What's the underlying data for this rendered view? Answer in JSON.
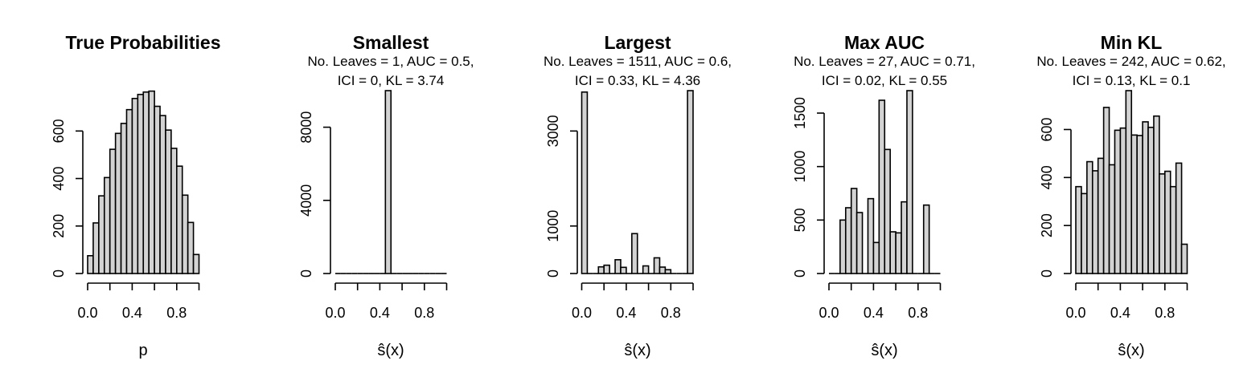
{
  "chart_data": [
    {
      "type": "bar",
      "title": "True Probabilities",
      "subtitle": [],
      "xlabel": "p",
      "xlim": [
        0,
        1
      ],
      "xticks": [
        0.0,
        0.4,
        0.8
      ],
      "xtick_labels": [
        "0.0",
        "0.4",
        "0.8"
      ],
      "ylim": [
        0,
        770
      ],
      "yticks": [
        0,
        200,
        400,
        600
      ],
      "ytick_labels": [
        "0",
        "200",
        "400",
        "600"
      ],
      "bin_width": 0.05,
      "bin_starts": [
        0.0,
        0.05,
        0.1,
        0.15,
        0.2,
        0.25,
        0.3,
        0.35,
        0.4,
        0.45,
        0.5,
        0.55,
        0.6,
        0.65,
        0.7,
        0.75,
        0.8,
        0.85,
        0.9,
        0.95
      ],
      "values": [
        75,
        213,
        327,
        404,
        523,
        590,
        632,
        690,
        737,
        754,
        764,
        768,
        704,
        665,
        604,
        527,
        452,
        330,
        215,
        80
      ]
    },
    {
      "type": "bar",
      "title": "Smallest",
      "subtitle": [
        "No. Leaves = 1, AUC = 0.5,",
        "ICI = 0, KL = 3.74"
      ],
      "xlabel": "ŝ(x)",
      "xlim": [
        0,
        1
      ],
      "xticks": [
        0.0,
        0.4,
        0.8
      ],
      "xtick_labels": [
        "0.0",
        "0.4",
        "0.8"
      ],
      "ylim": [
        0,
        10000
      ],
      "yticks": [
        0,
        4000,
        8000
      ],
      "ytick_labels": [
        "0",
        "4000",
        "8000"
      ],
      "bin_width": 0.05,
      "bin_starts": [
        0.0,
        0.05,
        0.1,
        0.15,
        0.2,
        0.25,
        0.3,
        0.35,
        0.4,
        0.45,
        0.5,
        0.55,
        0.6,
        0.65,
        0.7,
        0.75,
        0.8,
        0.85,
        0.9,
        0.95
      ],
      "values": [
        0,
        0,
        0,
        0,
        0,
        0,
        0,
        0,
        0,
        10000,
        0,
        0,
        0,
        0,
        0,
        0,
        0,
        0,
        0,
        0
      ]
    },
    {
      "type": "bar",
      "title": "Largest",
      "subtitle": [
        "No. Leaves = 1511, AUC = 0.6,",
        "ICI = 0.33, KL = 4.36"
      ],
      "xlabel": "ŝ(x)",
      "xlim": [
        0,
        1
      ],
      "xticks": [
        0.0,
        0.4,
        0.8
      ],
      "xtick_labels": [
        "0.0",
        "0.4",
        "0.8"
      ],
      "ylim": [
        0,
        3850
      ],
      "yticks": [
        0,
        1000,
        3000
      ],
      "ytick_labels": [
        "0",
        "1000",
        "3000"
      ],
      "bin_width": 0.05,
      "bin_starts": [
        0.0,
        0.05,
        0.1,
        0.15,
        0.2,
        0.25,
        0.3,
        0.35,
        0.4,
        0.45,
        0.5,
        0.55,
        0.6,
        0.65,
        0.7,
        0.75,
        0.8,
        0.85,
        0.9,
        0.95
      ],
      "values": [
        3820,
        0,
        0,
        140,
        175,
        0,
        290,
        130,
        0,
        840,
        0,
        160,
        0,
        330,
        135,
        80,
        0,
        0,
        0,
        3850
      ]
    },
    {
      "type": "bar",
      "title": "Max AUC",
      "subtitle": [
        "No. Leaves = 27, AUC = 0.71,",
        "ICI = 0.02, KL = 0.55"
      ],
      "xlabel": "ŝ(x)",
      "xlim": [
        0,
        1
      ],
      "xticks": [
        0.0,
        0.4,
        0.8
      ],
      "xtick_labels": [
        "0.0",
        "0.4",
        "0.8"
      ],
      "ylim": [
        0,
        1710
      ],
      "yticks": [
        0,
        500,
        1000,
        1500
      ],
      "ytick_labels": [
        "0",
        "500",
        "1000",
        "1500"
      ],
      "bin_width": 0.05,
      "bin_starts": [
        0.0,
        0.05,
        0.1,
        0.15,
        0.2,
        0.25,
        0.3,
        0.35,
        0.4,
        0.45,
        0.5,
        0.55,
        0.6,
        0.65,
        0.7,
        0.75,
        0.8,
        0.85,
        0.9,
        0.95
      ],
      "values": [
        0,
        0,
        500,
        615,
        795,
        570,
        0,
        700,
        290,
        1620,
        1160,
        390,
        380,
        670,
        1710,
        0,
        0,
        640,
        0,
        0
      ]
    },
    {
      "type": "bar",
      "title": "Min KL",
      "subtitle": [
        "No. Leaves = 242, AUC = 0.62,",
        "ICI = 0.13, KL = 0.1"
      ],
      "xlabel": "ŝ(x)",
      "xlim": [
        0,
        1
      ],
      "xticks": [
        0.0,
        0.4,
        0.8
      ],
      "xtick_labels": [
        "0.0",
        "0.4",
        "0.8"
      ],
      "ylim": [
        0,
        762
      ],
      "yticks": [
        0,
        200,
        400,
        600
      ],
      "ytick_labels": [
        "0",
        "200",
        "400",
        "600"
      ],
      "bin_width": 0.05,
      "bin_starts": [
        0.0,
        0.05,
        0.1,
        0.15,
        0.2,
        0.25,
        0.3,
        0.35,
        0.4,
        0.45,
        0.5,
        0.55,
        0.6,
        0.65,
        0.7,
        0.75,
        0.8,
        0.85,
        0.9,
        0.95
      ],
      "values": [
        362,
        333,
        466,
        428,
        480,
        692,
        453,
        597,
        606,
        762,
        577,
        575,
        632,
        609,
        656,
        415,
        426,
        362,
        460,
        122
      ]
    }
  ]
}
